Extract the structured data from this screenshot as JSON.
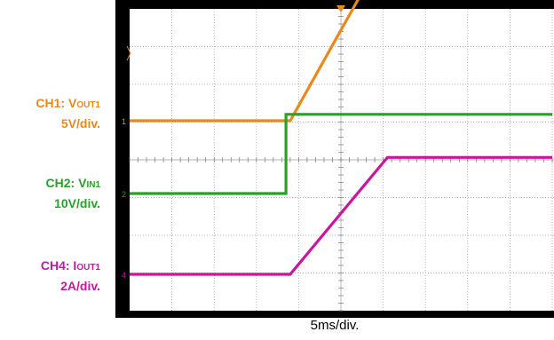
{
  "labels": {
    "ch1": {
      "prefix": "CH1: V",
      "sub": "OUT1",
      "scale": "5V/div."
    },
    "ch2": {
      "prefix": "CH2: V",
      "sub": "IN1",
      "scale": "10V/div."
    },
    "ch4": {
      "prefix": "CH4: I",
      "sub": "OUT1",
      "scale": "2A/div."
    }
  },
  "chart_data": {
    "type": "line",
    "xlabel": "5ms/div.",
    "x_unit": "div",
    "xlim": [
      0,
      10
    ],
    "grid": true,
    "series": [
      {
        "name": "CH1: VOUT1",
        "color": "#e8891c",
        "marker": "1",
        "scale": "5V/div.",
        "x": [
          0,
          3.8,
          6.2,
          10
        ],
        "y": [
          0,
          0,
          4.8,
          4.8
        ]
      },
      {
        "name": "CH2: VIN1",
        "color": "#2aa02a",
        "marker": "2",
        "scale": "10V/div.",
        "x": [
          0,
          3.7,
          3.7,
          10
        ],
        "y": [
          0,
          0,
          2.1,
          2.1
        ]
      },
      {
        "name": "CH4: IOUT1",
        "color": "#c8179e",
        "marker": "4",
        "scale": "2A/div.",
        "x": [
          0,
          3.8,
          6.1,
          10
        ],
        "y": [
          0,
          0,
          3.1,
          3.1
        ]
      }
    ]
  }
}
